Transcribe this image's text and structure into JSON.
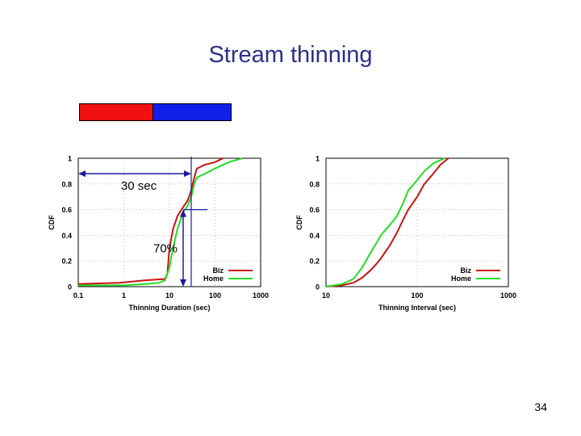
{
  "slide": {
    "title": "Stream thinning",
    "page_number": "34",
    "color_bar": {
      "left_color": "#f01010",
      "right_color": "#1020e8"
    }
  },
  "chart_data": [
    {
      "type": "line",
      "xscale": "log",
      "xlim": [
        0.1,
        1000
      ],
      "ylim": [
        0,
        1
      ],
      "xlabel": "Thinning Duration (sec)",
      "ylabel": "CDF",
      "x_ticks": [
        "0.1",
        "1",
        "10",
        "100",
        "1000"
      ],
      "y_ticks": [
        "0",
        "0.2",
        "0.4",
        "0.6",
        "0.8",
        "1"
      ],
      "legend_position": "bottom-right",
      "series": [
        {
          "name": "Biz",
          "color": "#cc1111",
          "points": [
            [
              0.1,
              0.02
            ],
            [
              0.8,
              0.03
            ],
            [
              3,
              0.05
            ],
            [
              8,
              0.06
            ],
            [
              9,
              0.1
            ],
            [
              10,
              0.3
            ],
            [
              12,
              0.45
            ],
            [
              15,
              0.55
            ],
            [
              20,
              0.62
            ],
            [
              25,
              0.67
            ],
            [
              30,
              0.75
            ],
            [
              35,
              0.85
            ],
            [
              40,
              0.92
            ],
            [
              60,
              0.95
            ],
            [
              100,
              0.97
            ],
            [
              150,
              1.0
            ]
          ]
        },
        {
          "name": "Home",
          "color": "#22dd22",
          "points": [
            [
              0.1,
              0.01
            ],
            [
              1,
              0.01
            ],
            [
              3,
              0.02
            ],
            [
              6,
              0.03
            ],
            [
              8,
              0.05
            ],
            [
              10,
              0.15
            ],
            [
              12,
              0.3
            ],
            [
              15,
              0.45
            ],
            [
              20,
              0.58
            ],
            [
              25,
              0.63
            ],
            [
              30,
              0.7
            ],
            [
              35,
              0.8
            ],
            [
              40,
              0.85
            ],
            [
              60,
              0.88
            ],
            [
              100,
              0.92
            ],
            [
              200,
              0.97
            ],
            [
              400,
              1.0
            ]
          ]
        }
      ],
      "annotations": [
        {
          "text": "30 sec",
          "y": 0.88,
          "x_range": [
            0.1,
            30
          ]
        },
        {
          "text": "70%",
          "x": 20,
          "y_range": [
            0,
            0.6
          ]
        },
        {
          "vertical_line_x": 30
        }
      ]
    },
    {
      "type": "line",
      "xscale": "log",
      "xlim": [
        10,
        1000
      ],
      "ylim": [
        0,
        1
      ],
      "xlabel": "Thinning Interval (sec)",
      "ylabel": "CDF",
      "x_ticks": [
        "10",
        "100",
        "1000"
      ],
      "y_ticks": [
        "0",
        "0.2",
        "0.4",
        "0.6",
        "0.8",
        "1"
      ],
      "legend_position": "bottom-right",
      "series": [
        {
          "name": "Biz",
          "color": "#cc1111",
          "points": [
            [
              10,
              0.0
            ],
            [
              15,
              0.01
            ],
            [
              20,
              0.03
            ],
            [
              25,
              0.07
            ],
            [
              30,
              0.12
            ],
            [
              35,
              0.17
            ],
            [
              40,
              0.22
            ],
            [
              50,
              0.32
            ],
            [
              60,
              0.42
            ],
            [
              70,
              0.52
            ],
            [
              80,
              0.6
            ],
            [
              100,
              0.7
            ],
            [
              120,
              0.8
            ],
            [
              150,
              0.88
            ],
            [
              180,
              0.95
            ],
            [
              220,
              1.0
            ]
          ]
        },
        {
          "name": "Home",
          "color": "#22dd22",
          "points": [
            [
              10,
              0.0
            ],
            [
              15,
              0.02
            ],
            [
              20,
              0.06
            ],
            [
              25,
              0.15
            ],
            [
              30,
              0.25
            ],
            [
              35,
              0.33
            ],
            [
              40,
              0.4
            ],
            [
              50,
              0.48
            ],
            [
              60,
              0.55
            ],
            [
              70,
              0.65
            ],
            [
              80,
              0.75
            ],
            [
              100,
              0.83
            ],
            [
              120,
              0.9
            ],
            [
              150,
              0.96
            ],
            [
              200,
              1.0
            ]
          ]
        }
      ],
      "annotations": []
    }
  ]
}
